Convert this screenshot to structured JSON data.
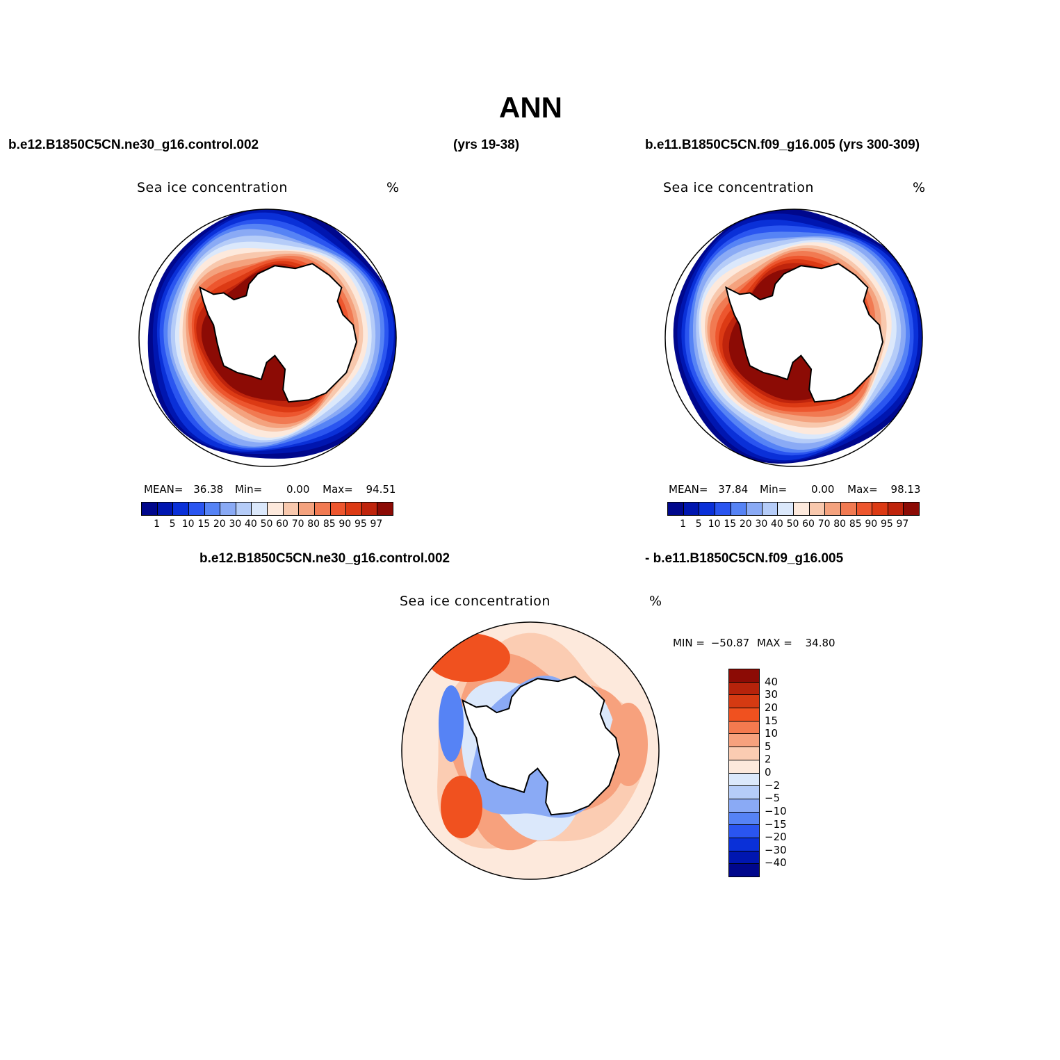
{
  "title": "ANN",
  "header": {
    "case1": "b.e12.B1850C5CN.ne30_g16.control.002",
    "case1_years": "(yrs 19-38)",
    "case2": "b.e11.B1850C5CN.f09_g16.005 (yrs 300-309)"
  },
  "diff_header": {
    "left": "b.e12.B1850C5CN.ne30_g16.control.002",
    "right": "- b.e11.B1850C5CN.f09_g16.005"
  },
  "variable": "Sea ice concentration",
  "units": "%",
  "panel1": {
    "mean_label": "MEAN=",
    "mean": "36.38",
    "min_label": "Min=",
    "min": "0.00",
    "max_label": "Max=",
    "max": "94.51"
  },
  "panel2": {
    "mean_label": "MEAN=",
    "mean": "37.84",
    "min_label": "Min=",
    "min": "0.00",
    "max_label": "Max=",
    "max": "98.13"
  },
  "panel3": {
    "min_label": "MIN =",
    "min": "−50.87",
    "max_label": "MAX =",
    "max": "34.80"
  },
  "colors": {
    "land": "#ffffff",
    "coast": "#000000",
    "abs_scale": [
      "#00078c",
      "#0016b0",
      "#0a30d8",
      "#2a55f0",
      "#5683f5",
      "#8aaaf5",
      "#b5ccf8",
      "#dbe8fb",
      "#fde9dc",
      "#f8c8ad",
      "#f4a27e",
      "#f17a52",
      "#ed562e",
      "#dc3a14",
      "#bf240c",
      "#8c0b05"
    ],
    "diff_scale": [
      "#8c0b05",
      "#b6230b",
      "#d53a12",
      "#f0511f",
      "#f47a4f",
      "#f7a17d",
      "#fbccb2",
      "#fde9dc",
      "#dbe8fb",
      "#b5ccf8",
      "#8aaaf5",
      "#5683f5",
      "#2a55f0",
      "#0a30d8",
      "#0016b0",
      "#00078c"
    ]
  },
  "chart_data": [
    {
      "type": "heatmap",
      "title": "Sea ice concentration",
      "units": "%",
      "projection": "south-polar-stereographic",
      "case": "b.e12.B1850C5CN.ne30_g16.control.002",
      "years": "19-38",
      "mean": 36.38,
      "min": 0.0,
      "max": 94.51,
      "colorbar_levels": [
        "1",
        "5",
        "10",
        "15",
        "20",
        "30",
        "40",
        "50",
        "60",
        "70",
        "80",
        "85",
        "90",
        "95",
        "97"
      ]
    },
    {
      "type": "heatmap",
      "title": "Sea ice concentration",
      "units": "%",
      "projection": "south-polar-stereographic",
      "case": "b.e11.B1850C5CN.f09_g16.005",
      "years": "300-309",
      "mean": 37.84,
      "min": 0.0,
      "max": 98.13,
      "colorbar_levels": [
        "1",
        "5",
        "10",
        "15",
        "20",
        "30",
        "40",
        "50",
        "60",
        "70",
        "80",
        "85",
        "90",
        "95",
        "97"
      ]
    },
    {
      "type": "heatmap",
      "title": "Sea ice concentration",
      "units": "%",
      "projection": "south-polar-stereographic",
      "difference": "b.e12.B1850C5CN.ne30_g16.control.002 - b.e11.B1850C5CN.f09_g16.005",
      "min": -50.87,
      "max": 34.8,
      "colorbar_levels": [
        "40",
        "30",
        "20",
        "15",
        "10",
        "5",
        "2",
        "0",
        "−2",
        "−5",
        "−10",
        "−15",
        "−20",
        "−30",
        "−40"
      ]
    }
  ]
}
